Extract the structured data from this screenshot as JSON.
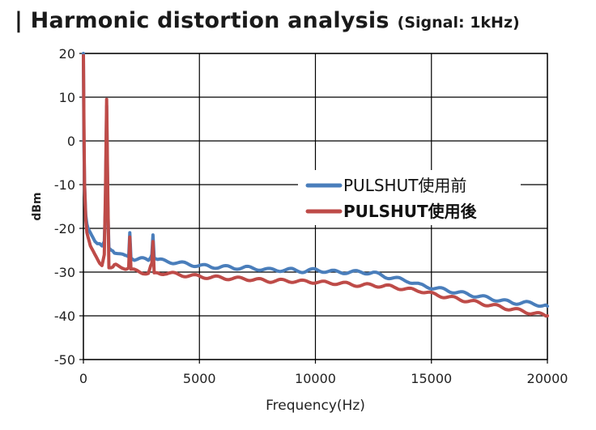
{
  "header": {
    "title": "| Harmonic distortion analysis",
    "subtitle": "(Signal: 1kHz)"
  },
  "chart_data": {
    "type": "line",
    "xlabel": "Frequency(Hz)",
    "ylabel": "dBm",
    "xlim": [
      0,
      20000
    ],
    "ylim": [
      -50,
      20
    ],
    "xticks": [
      0,
      5000,
      10000,
      15000,
      20000
    ],
    "yticks": [
      20,
      10,
      0,
      -10,
      -20,
      -30,
      -40,
      -50
    ],
    "grid": true,
    "legend_position": "right",
    "series": [
      {
        "name": "PULSHUT使用前",
        "color": "#4a7ebb",
        "x": [
          0,
          20,
          50,
          100,
          150,
          200,
          300,
          400,
          500,
          600,
          700,
          800,
          900,
          950,
          1000,
          1050,
          1100,
          1200,
          1400,
          1600,
          1800,
          1950,
          2000,
          2050,
          2200,
          2500,
          2800,
          2950,
          3000,
          3050,
          3200,
          3500,
          4000,
          4500,
          5000,
          5500,
          6000,
          6500,
          7000,
          7500,
          8000,
          8500,
          9000,
          9500,
          10000,
          10500,
          11000,
          11500,
          12000,
          12500,
          13000,
          13500,
          14000,
          14500,
          15000,
          15500,
          16000,
          16500,
          17000,
          17500,
          18000,
          18500,
          19000,
          19500,
          20000
        ],
        "y": [
          20,
          0,
          -10,
          -17,
          -19,
          -20,
          -21,
          -22,
          -23,
          -23.5,
          -23.5,
          -24,
          -23,
          -15,
          8,
          -15,
          -24.5,
          -25,
          -25.5,
          -26,
          -26.5,
          -26.5,
          -21,
          -26.5,
          -27,
          -27,
          -27.3,
          -26,
          -21.5,
          -26.5,
          -27.2,
          -27.5,
          -27.8,
          -28.2,
          -28.5,
          -28.8,
          -28.8,
          -29,
          -29,
          -29.2,
          -29.5,
          -29.5,
          -29.5,
          -29.8,
          -29.5,
          -29.8,
          -30,
          -30,
          -30,
          -30.2,
          -31,
          -31.5,
          -32,
          -33,
          -33.5,
          -34,
          -34.5,
          -35,
          -35.5,
          -36,
          -36.5,
          -37,
          -37,
          -37.3,
          -37.8
        ]
      },
      {
        "name": "PULSHUT使用後",
        "color": "#be4b48",
        "x": [
          0,
          20,
          50,
          100,
          150,
          200,
          300,
          400,
          500,
          600,
          700,
          800,
          900,
          950,
          1000,
          1050,
          1100,
          1200,
          1400,
          1600,
          1800,
          1950,
          2000,
          2050,
          2200,
          2500,
          2800,
          2950,
          3000,
          3050,
          3200,
          3500,
          4000,
          4500,
          5000,
          5500,
          6000,
          6500,
          7000,
          7500,
          8000,
          8500,
          9000,
          9500,
          10000,
          10500,
          11000,
          11500,
          12000,
          12500,
          13000,
          13500,
          14000,
          14500,
          15000,
          15500,
          16000,
          16500,
          17000,
          17500,
          18000,
          18500,
          19000,
          19500,
          20000
        ],
        "y": [
          19.5,
          5,
          -10,
          -18,
          -21,
          -22,
          -24,
          -25,
          -26,
          -27,
          -28,
          -28.5,
          -26,
          -12,
          9.5,
          -12,
          -29,
          -29,
          -28.5,
          -28.8,
          -29,
          -29,
          -22,
          -29.5,
          -29.7,
          -30,
          -30.2,
          -28,
          -23,
          -30.5,
          -30.2,
          -30.2,
          -30.5,
          -30.8,
          -31,
          -31.2,
          -31.3,
          -31.5,
          -31.5,
          -31.8,
          -32,
          -32,
          -32,
          -32.2,
          -32.2,
          -32.5,
          -32.5,
          -32.8,
          -33,
          -33,
          -33.2,
          -33.5,
          -34,
          -34.2,
          -35,
          -35.5,
          -36,
          -36.5,
          -37,
          -37.5,
          -38,
          -38.5,
          -39,
          -39.5,
          -40
        ]
      }
    ]
  }
}
